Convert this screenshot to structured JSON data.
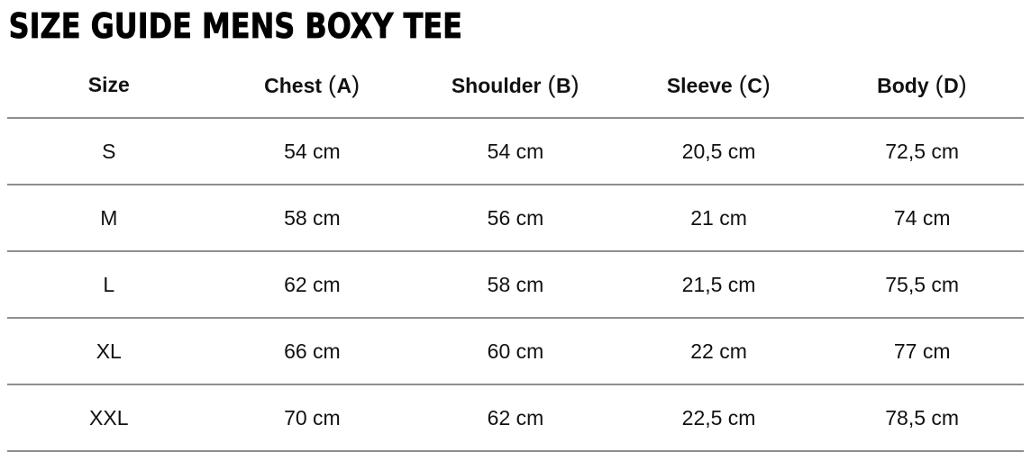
{
  "page": {
    "title": "SIZE GUIDE MENS BOXY TEE"
  },
  "colors": {
    "background": "#ffffff",
    "title": "#000000",
    "text": "#111111",
    "divider": "#8e8e8e"
  },
  "table": {
    "paren_open": "(",
    "paren_close": ")",
    "headers": [
      {
        "label": "Size",
        "letter": ""
      },
      {
        "label": "Chest",
        "letter": "A"
      },
      {
        "label": "Shoulder",
        "letter": "B"
      },
      {
        "label": "Sleeve",
        "letter": "C"
      },
      {
        "label": "Body",
        "letter": "D"
      }
    ],
    "rows": [
      {
        "size": "S",
        "chest": "54 cm",
        "shoulder": "54 cm",
        "sleeve": "20,5 cm",
        "body": "72,5 cm"
      },
      {
        "size": "M",
        "chest": "58 cm",
        "shoulder": "56 cm",
        "sleeve": "21 cm",
        "body": "74 cm"
      },
      {
        "size": "L",
        "chest": "62 cm",
        "shoulder": "58 cm",
        "sleeve": "21,5 cm",
        "body": "75,5 cm"
      },
      {
        "size": "XL",
        "chest": "66 cm",
        "shoulder": "60 cm",
        "sleeve": "22 cm",
        "body": "77 cm"
      },
      {
        "size": "XXL",
        "chest": "70 cm",
        "shoulder": "62 cm",
        "sleeve": "22,5 cm",
        "body": "78,5 cm"
      }
    ]
  }
}
